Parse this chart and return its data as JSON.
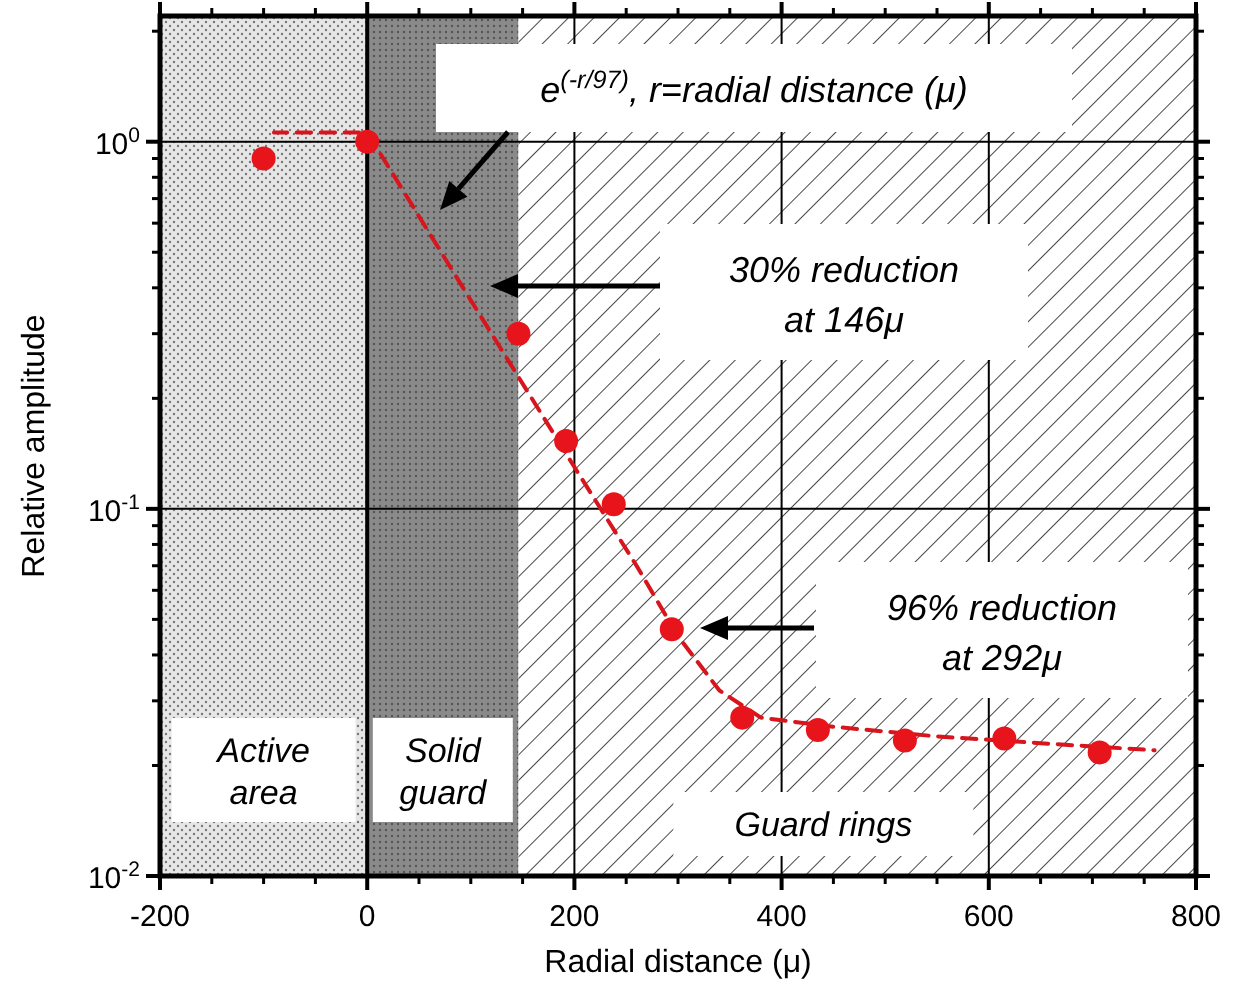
{
  "chart_data": {
    "type": "scatter",
    "xlabel": "Radial distance (μ)",
    "ylabel": "Relative amplitude",
    "log": "y",
    "grid": true,
    "marker": "circle",
    "xlim": [
      -200,
      800
    ],
    "xticks": [
      -200,
      0,
      200,
      400,
      600,
      800
    ],
    "ylim": [
      0.01,
      2.2
    ],
    "yticks": [
      {
        "value": 0.01,
        "label": "10$^{-2}$"
      },
      {
        "value": 0.1,
        "label": "10$^{-1}$"
      },
      {
        "value": 1,
        "label": "10$^{0}$"
      }
    ],
    "series": [
      {
        "color": "#e8141c",
        "x": [
          -100,
          0,
          146,
          192,
          238,
          294,
          362,
          435,
          519,
          615,
          707
        ],
        "values": [
          0.9,
          1,
          0.3,
          0.153,
          0.103,
          0.047,
          0.027,
          0.025,
          0.0234,
          0.0237,
          0.0217
        ]
      },
      {
        "type": "line",
        "color": "#d8141c",
        "line_style": "dashed",
        "marker": "none",
        "x": [
          -90,
          0,
          100,
          200,
          260,
          300,
          340,
          380,
          450,
          550,
          650,
          760
        ],
        "values": [
          1.06,
          1.06,
          0.37,
          0.13,
          0.07,
          0.045,
          0.032,
          0.027,
          0.0255,
          0.024,
          0.023,
          0.022
        ]
      }
    ],
    "bands": [
      {
        "axis": "x",
        "from": -200,
        "to": 0,
        "label": "Active\narea",
        "color": "#e6e6e6"
      },
      {
        "axis": "x",
        "from": 0,
        "to": 146,
        "label": "Solid\nguard",
        "color": "#8a8a8a"
      },
      {
        "axis": "x",
        "from": 146,
        "to": 800,
        "label": "Guard rings",
        "color": "#ffffff"
      }
    ],
    "annotations": [
      "e$^{(-r/97)}$, r=radial distance (μ)",
      "30% reduction\nat 146μ",
      "96% reduction\nat 292μ"
    ]
  }
}
